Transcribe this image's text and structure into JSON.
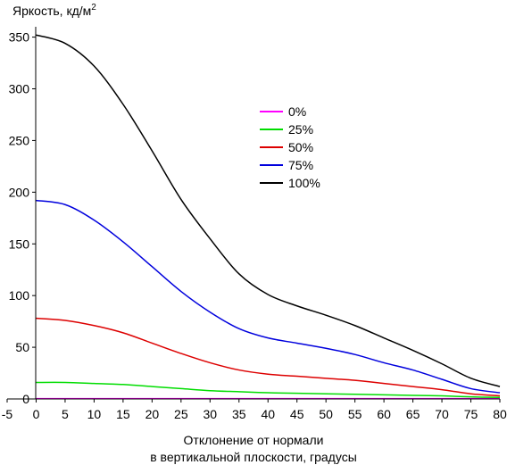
{
  "chart_data": {
    "type": "line",
    "title": "",
    "ylabel": "Яркость, кд/м",
    "ylabel_sup": "2",
    "xlabel_lines": [
      "Отклонение от нормали",
      "в вертикальной плоскости, градусы"
    ],
    "xlim": [
      -5,
      80
    ],
    "ylim": [
      0,
      360
    ],
    "x_ticks": [
      -5,
      0,
      5,
      10,
      15,
      20,
      25,
      30,
      35,
      40,
      45,
      50,
      55,
      60,
      65,
      70,
      75,
      80
    ],
    "y_ticks": [
      0,
      50,
      100,
      150,
      200,
      250,
      300,
      350
    ],
    "grid": false,
    "legend_position": "upper-center",
    "x": [
      0,
      5,
      10,
      15,
      20,
      25,
      30,
      35,
      40,
      45,
      50,
      55,
      60,
      65,
      70,
      75,
      80
    ],
    "series": [
      {
        "name": "0%",
        "color": "#ff00ff",
        "values": [
          0.3,
          0.3,
          0.3,
          0.3,
          0.3,
          0.3,
          0.3,
          0.3,
          0.3,
          0.3,
          0.3,
          0.3,
          0.3,
          0.3,
          0.3,
          0.3,
          0.3
        ]
      },
      {
        "name": "25%",
        "color": "#00dd00",
        "values": [
          16,
          16,
          15,
          14,
          12,
          10,
          8,
          7,
          6,
          5.5,
          5,
          4.5,
          4,
          3.5,
          3,
          2,
          1.5
        ]
      },
      {
        "name": "50%",
        "color": "#dd0000",
        "values": [
          78,
          76,
          71,
          64,
          54,
          44,
          35,
          28,
          24,
          22,
          20,
          18,
          15,
          12,
          9,
          5,
          3
        ]
      },
      {
        "name": "75%",
        "color": "#0000dd",
        "values": [
          192,
          188,
          173,
          152,
          128,
          104,
          84,
          68,
          59,
          54,
          49,
          43,
          35,
          28,
          19,
          10,
          6
        ]
      },
      {
        "name": "100%",
        "color": "#000000",
        "values": [
          352,
          344,
          322,
          285,
          240,
          193,
          155,
          121,
          101,
          90,
          81,
          71,
          59,
          47,
          34,
          20,
          12
        ]
      }
    ]
  }
}
